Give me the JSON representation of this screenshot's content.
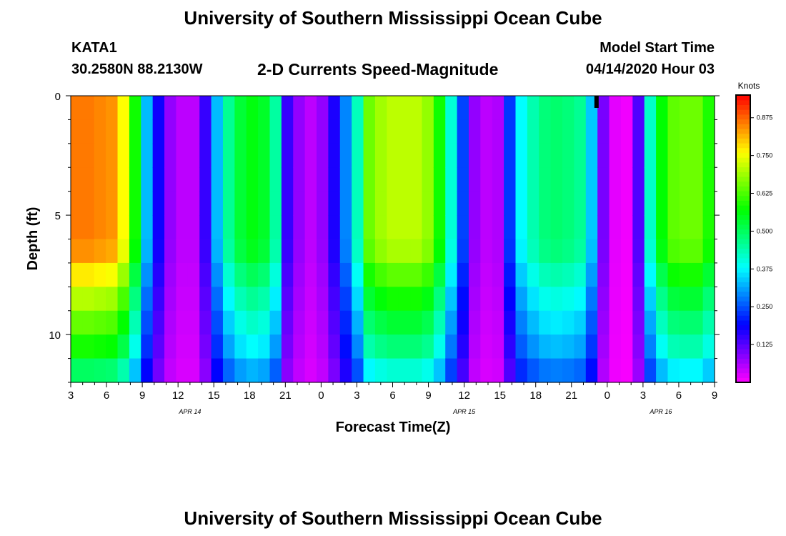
{
  "header": {
    "title": "University of Southern Mississippi Ocean Cube",
    "station": "KATA1",
    "coords": "30.2580N 88.2130W",
    "subtitle": "2-D Currents Speed-Magnitude",
    "start_label": "Model Start Time",
    "start_value": "04/14/2020 Hour 03"
  },
  "footer": {
    "title": "University of Southern Mississippi Ocean Cube"
  },
  "chart_data": {
    "type": "heatmap",
    "title": "2-D Currents Speed-Magnitude",
    "xlabel": "Forecast Time(Z)",
    "ylabel": "Depth (ft)",
    "x_range": [
      3,
      57
    ],
    "y_range": [
      0,
      12
    ],
    "y_ticks": [
      0,
      5,
      10
    ],
    "x_ticks": [
      {
        "t": 3,
        "label": "3"
      },
      {
        "t": 6,
        "label": "6"
      },
      {
        "t": 9,
        "label": "9"
      },
      {
        "t": 12,
        "label": "12"
      },
      {
        "t": 15,
        "label": "15"
      },
      {
        "t": 18,
        "label": "18"
      },
      {
        "t": 21,
        "label": "21"
      },
      {
        "t": 24,
        "label": "0"
      },
      {
        "t": 27,
        "label": "3"
      },
      {
        "t": 30,
        "label": "6"
      },
      {
        "t": 33,
        "label": "9"
      },
      {
        "t": 36,
        "label": "12"
      },
      {
        "t": 39,
        "label": "15"
      },
      {
        "t": 42,
        "label": "18"
      },
      {
        "t": 45,
        "label": "21"
      },
      {
        "t": 48,
        "label": "0"
      },
      {
        "t": 51,
        "label": "3"
      },
      {
        "t": 54,
        "label": "6"
      },
      {
        "t": 57,
        "label": "9"
      }
    ],
    "date_labels": [
      {
        "t": 13,
        "label": "APR 14"
      },
      {
        "t": 36,
        "label": "APR 15"
      },
      {
        "t": 52.5,
        "label": "APR 16"
      }
    ],
    "colorbar": {
      "title": "Knots",
      "range": [
        0,
        0.95
      ],
      "ticks": [
        "0.125",
        "0.250",
        "0.375",
        "0.500",
        "0.625",
        "0.750",
        "0.875"
      ],
      "tick_values": [
        0.125,
        0.25,
        0.375,
        0.5,
        0.625,
        0.75,
        0.875
      ]
    },
    "depth_levels_ft": [
      0.5,
      1.5,
      2.5,
      3.5,
      4.5,
      5.5,
      6.5,
      7.5,
      8.5,
      9.5,
      10.5,
      11.5
    ],
    "time_step_hours": 1,
    "surface_speed_knots_by_hour": [
      0.86,
      0.86,
      0.85,
      0.84,
      0.76,
      0.58,
      0.33,
      0.18,
      0.08,
      0.05,
      0.05,
      0.15,
      0.33,
      0.46,
      0.53,
      0.56,
      0.54,
      0.45,
      0.15,
      0.08,
      0.05,
      0.08,
      0.17,
      0.29,
      0.43,
      0.65,
      0.69,
      0.71,
      0.71,
      0.71,
      0.68,
      0.58,
      0.41,
      0.24,
      0.08,
      0.05,
      0.06,
      0.23,
      0.38,
      0.44,
      0.48,
      0.49,
      0.48,
      0.46,
      0.34,
      0.1,
      0.02,
      0.01,
      0.13,
      0.42,
      0.57,
      0.64,
      0.65,
      0.65,
      0.59
    ],
    "depth_factor_by_level": [
      1.0,
      1.0,
      1.0,
      1.0,
      1.0,
      1.0,
      0.98,
      0.9,
      0.82,
      0.75,
      0.68,
      0.58
    ],
    "annotation": "black marker near 23Z (APR 15) at surface"
  }
}
